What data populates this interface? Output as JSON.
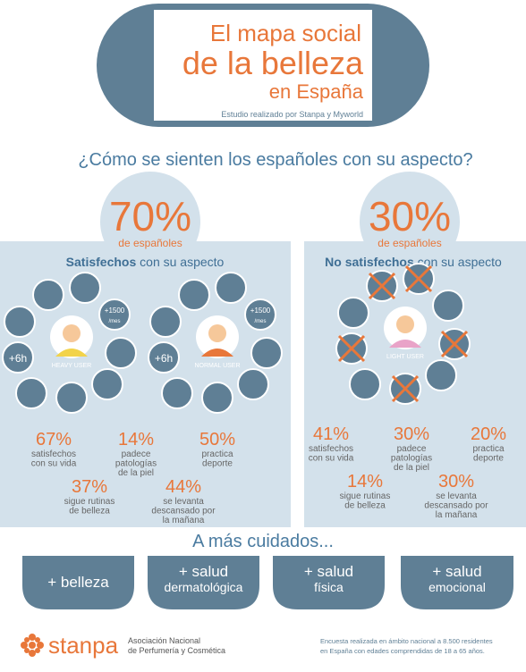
{
  "header": {
    "title_lines": [
      "El mapa social",
      "de la belleza",
      "en España"
    ],
    "subtitle": "Estudio realizado por Stanpa y Myworld"
  },
  "question": "¿Cómo se sienten los españoles con su aspecto?",
  "satisfied": {
    "percent": "70%",
    "of": "de españoles",
    "heading_bold": "Satisfechos",
    "heading_rest": "con su aspecto",
    "icons": {
      "money": "+1500",
      "per_month": "/mes",
      "sleep": "+6h"
    },
    "users": [
      "HEAVY USER",
      "NORMAL USER"
    ],
    "stats": [
      {
        "value": "67%",
        "lines": [
          "satisfechos",
          "con su vida"
        ]
      },
      {
        "value": "14%",
        "lines": [
          "padece",
          "patologías",
          "de la piel"
        ]
      },
      {
        "value": "50%",
        "lines": [
          "practica",
          "deporte"
        ]
      },
      {
        "value": "37%",
        "lines": [
          "sigue rutinas",
          "de belleza"
        ]
      },
      {
        "value": "44%",
        "lines": [
          "se levanta",
          "descansado por",
          "la mañana"
        ]
      }
    ]
  },
  "unsatisfied": {
    "percent": "30%",
    "of": "de españoles",
    "heading_bold": "No satisfechos",
    "heading_rest": "con su aspecto",
    "user": "LIGHT USER",
    "stats": [
      {
        "value": "41%",
        "lines": [
          "satisfechos",
          "con su vida"
        ]
      },
      {
        "value": "30%",
        "lines": [
          "padece",
          "patologías",
          "de la piel"
        ]
      },
      {
        "value": "20%",
        "lines": [
          "practica",
          "deporte"
        ]
      },
      {
        "value": "14%",
        "lines": [
          "sigue rutinas",
          "de belleza"
        ]
      },
      {
        "value": "30%",
        "lines": [
          "se levanta",
          "descansado por",
          "la mañana"
        ]
      }
    ]
  },
  "more_care": {
    "title": "A más cuidados...",
    "tabs": [
      [
        "+ belleza"
      ],
      [
        "+ salud",
        "dermatológica"
      ],
      [
        "+ salud",
        "física"
      ],
      [
        "+ salud",
        "emocional"
      ]
    ]
  },
  "footer": {
    "logo": "stanpa",
    "association": [
      "Asociación Nacional",
      "de Perfumería y Cosmética"
    ],
    "note": [
      "Encuesta realizada en ámbito nacional a 8.500 residentes",
      "en España con edades comprendidas de 18 a 65 años."
    ]
  }
}
